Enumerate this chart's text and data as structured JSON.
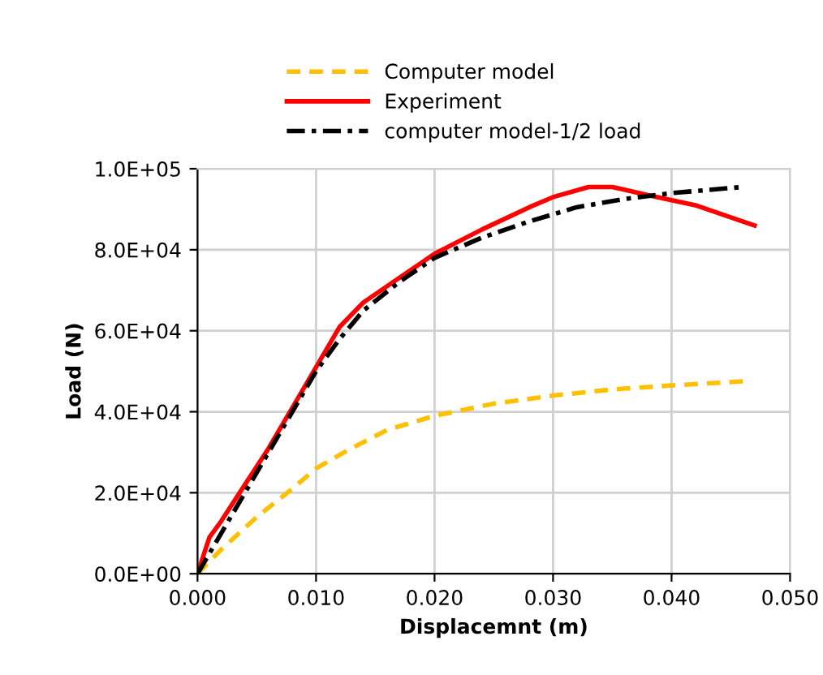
{
  "chart_data": {
    "type": "line",
    "xlabel": "Displacemnt (m)",
    "ylabel": "Load (N)",
    "xlim": [
      0,
      0.05
    ],
    "ylim": [
      0,
      100000
    ],
    "xticks": [
      {
        "value": 0,
        "label": "0.000"
      },
      {
        "value": 0.01,
        "label": "0.010"
      },
      {
        "value": 0.02,
        "label": "0.020"
      },
      {
        "value": 0.03,
        "label": "0.030"
      },
      {
        "value": 0.04,
        "label": "0.040"
      },
      {
        "value": 0.05,
        "label": "0.050"
      }
    ],
    "yticks": [
      {
        "value": 0,
        "label": "0.0E+00"
      },
      {
        "value": 20000,
        "label": "2.0E+04"
      },
      {
        "value": 40000,
        "label": "4.0E+04"
      },
      {
        "value": 60000,
        "label": "6.0E+04"
      },
      {
        "value": 80000,
        "label": "8.0E+04"
      },
      {
        "value": 100000,
        "label": "1.0E+05"
      }
    ],
    "grid": true,
    "legend": "top",
    "marker": "none",
    "series": [
      {
        "name": "Computer model",
        "color": "#ffc000",
        "line_style": "dashed",
        "x": [
          0,
          0.002,
          0.005,
          0.008,
          0.01,
          0.013,
          0.016,
          0.02,
          0.025,
          0.03,
          0.035,
          0.04,
          0.046
        ],
        "values": [
          0,
          6000,
          14000,
          21000,
          26000,
          31000,
          35500,
          39000,
          42000,
          44000,
          45500,
          46500,
          47500
        ]
      },
      {
        "name": "Experiment",
        "color": "#ff0000",
        "line_style": "solid",
        "x": [
          0,
          0.001,
          0.002,
          0.004,
          0.006,
          0.008,
          0.01,
          0.012,
          0.014,
          0.016,
          0.02,
          0.024,
          0.028,
          0.03,
          0.033,
          0.035,
          0.038,
          0.042,
          0.047
        ],
        "values": [
          0,
          9000,
          13000,
          22000,
          31000,
          41000,
          51000,
          61000,
          67000,
          71000,
          79000,
          85000,
          90500,
          93000,
          95500,
          95500,
          93500,
          91000,
          86000
        ]
      },
      {
        "name": "computer model-1/2 load",
        "color": "#000000",
        "line_style": "dashdot",
        "x": [
          0,
          0.002,
          0.004,
          0.006,
          0.008,
          0.01,
          0.012,
          0.014,
          0.017,
          0.02,
          0.024,
          0.028,
          0.032,
          0.036,
          0.04,
          0.046
        ],
        "values": [
          0,
          10000,
          20000,
          30000,
          40000,
          50000,
          58000,
          65000,
          72000,
          78000,
          83000,
          87000,
          90500,
          92500,
          94000,
          95500
        ]
      }
    ]
  }
}
